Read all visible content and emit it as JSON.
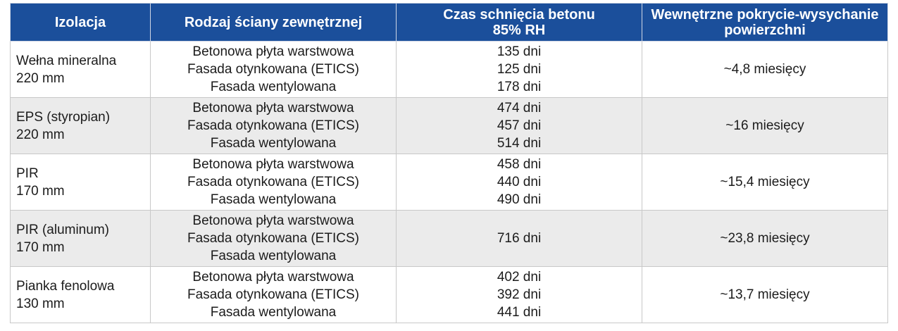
{
  "headers": {
    "insulation": "Izolacja",
    "wall_type": "Rodzaj ściany zewnętrznej",
    "concrete_drying_line1": "Czas schnięcia betonu",
    "concrete_drying_line2": "85% RH",
    "surface_drying_line1": "Wewnętrzne pokrycie-wysychanie",
    "surface_drying_line2": "powierzchni"
  },
  "rows": [
    {
      "insulation": [
        "Wełna mineralna",
        "220 mm"
      ],
      "walls": [
        "Betonowa płyta warstwowa",
        "Fasada otynkowana (ETICS)",
        "Fasada wentylowana"
      ],
      "times": [
        "135 dni",
        "125 dni",
        "178 dni"
      ],
      "surface": "~4,8 miesięcy"
    },
    {
      "insulation": [
        "EPS (styropian)",
        "220 mm"
      ],
      "walls": [
        "Betonowa płyta warstwowa",
        "Fasada otynkowana (ETICS)",
        "Fasada wentylowana"
      ],
      "times": [
        "474 dni",
        "457 dni",
        "514 dni"
      ],
      "surface": "~16 miesięcy"
    },
    {
      "insulation": [
        "PIR",
        "170 mm"
      ],
      "walls": [
        "Betonowa płyta warstwowa",
        "Fasada otynkowana (ETICS)",
        "Fasada wentylowana"
      ],
      "times": [
        "458 dni",
        "440 dni",
        "490 dni"
      ],
      "surface": "~15,4 miesięcy"
    },
    {
      "insulation": [
        "PIR (aluminum)",
        "170 mm"
      ],
      "walls": [
        "Betonowa płyta warstwowa",
        "Fasada otynkowana (ETICS)",
        "Fasada wentylowana"
      ],
      "times": [
        "716 dni"
      ],
      "surface": "~23,8 miesięcy"
    },
    {
      "insulation": [
        "Pianka fenolowa",
        "130 mm"
      ],
      "walls": [
        "Betonowa płyta warstwowa",
        "Fasada otynkowana (ETICS)",
        "Fasada wentylowana"
      ],
      "times": [
        "402 dni",
        "392 dni",
        "441 dni"
      ],
      "surface": "~13,7 miesięcy"
    }
  ]
}
